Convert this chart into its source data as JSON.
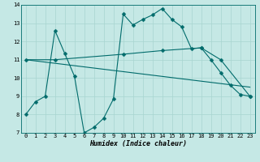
{
  "title": "",
  "xlabel": "Humidex (Indice chaleur)",
  "background_color": "#c5e8e5",
  "grid_color": "#a8d5d0",
  "line_color": "#006b6b",
  "xlim": [
    -0.5,
    23.5
  ],
  "ylim": [
    7,
    14
  ],
  "xticks": [
    0,
    1,
    2,
    3,
    4,
    5,
    6,
    7,
    8,
    9,
    10,
    11,
    12,
    13,
    14,
    15,
    16,
    17,
    18,
    19,
    20,
    21,
    22,
    23
  ],
  "yticks": [
    7,
    8,
    9,
    10,
    11,
    12,
    13,
    14
  ],
  "line1_x": [
    0,
    1,
    2,
    3,
    4,
    5,
    6,
    7,
    8,
    9,
    10,
    11,
    12,
    13,
    14,
    15,
    16,
    17,
    18,
    19,
    20,
    21,
    22,
    23
  ],
  "line1_y": [
    8.0,
    8.7,
    9.0,
    12.6,
    11.35,
    10.1,
    7.0,
    7.3,
    7.8,
    8.85,
    13.5,
    12.9,
    13.2,
    13.45,
    13.8,
    13.2,
    12.8,
    11.6,
    11.65,
    11.0,
    10.3,
    9.6,
    9.1,
    9.0
  ],
  "line2_x": [
    0,
    3,
    10,
    14,
    18,
    20,
    23
  ],
  "line2_y": [
    11.0,
    11.0,
    11.3,
    11.5,
    11.65,
    11.0,
    9.0
  ],
  "line3_x": [
    0,
    23
  ],
  "line3_y": [
    11.0,
    9.5
  ],
  "markersize": 2.5,
  "tick_fontsize": 5.0,
  "xlabel_fontsize": 6.0
}
